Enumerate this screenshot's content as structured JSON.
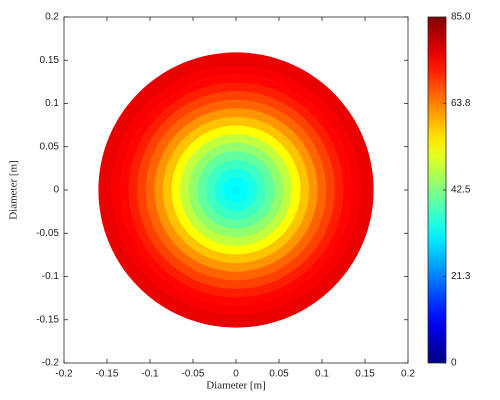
{
  "chart_data": {
    "type": "radial-contour",
    "xlabel": "Diameter [m]",
    "ylabel": "Diameter [m]",
    "r": [
      0,
      0.01,
      0.02,
      0.03,
      0.04,
      0.05,
      0.06,
      0.07,
      0.08,
      0.09,
      0.1,
      0.11,
      0.12,
      0.13,
      0.14,
      0.15,
      0.16
    ],
    "values": [
      31,
      32,
      34,
      37,
      40,
      44,
      48,
      53,
      58,
      62,
      66,
      69,
      72,
      74,
      75,
      76,
      76
    ],
    "colormap": "jet",
    "xlim": [
      -0.2,
      0.2
    ],
    "xticks": [
      -0.2,
      -0.15,
      -0.1,
      -0.05,
      0,
      0.05,
      0.1,
      0.15,
      0.2
    ],
    "ylim": [
      -0.2,
      0.2
    ],
    "yticks": [
      -0.2,
      -0.15,
      -0.1,
      -0.05,
      0,
      0.05,
      0.1,
      0.15,
      0.2
    ],
    "clim": [
      0,
      85
    ],
    "cticks": [
      0,
      21.3,
      42.5,
      63.8,
      {
        "value": 85,
        "label": "85.0"
      }
    ]
  }
}
